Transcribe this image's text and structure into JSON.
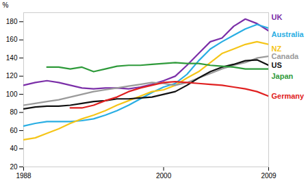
{
  "chart_data": {
    "type": "line",
    "y_label": "%",
    "x": [
      1988,
      1989,
      1990,
      1991,
      1992,
      1993,
      1994,
      1995,
      1996,
      1997,
      1998,
      1999,
      2000,
      2001,
      2002,
      2003,
      2004,
      2005,
      2006,
      2007,
      2008,
      2009
    ],
    "series": [
      {
        "name": "UK",
        "color": "#7b2fa8",
        "values": [
          110,
          113,
          115,
          113,
          110,
          107,
          106,
          107,
          107,
          106,
          108,
          111,
          115,
          120,
          132,
          145,
          158,
          162,
          175,
          183,
          178,
          170
        ]
      },
      {
        "name": "Australia",
        "color": "#29aee3",
        "values": [
          65,
          68,
          70,
          70,
          70,
          71,
          73,
          77,
          82,
          88,
          95,
          102,
          108,
          112,
          122,
          137,
          150,
          158,
          165,
          172,
          177,
          173
        ]
      },
      {
        "name": "NZ",
        "color": "#f5c518",
        "values": [
          50,
          52,
          57,
          62,
          68,
          73,
          77,
          82,
          88,
          93,
          98,
          103,
          105,
          110,
          118,
          125,
          135,
          145,
          150,
          155,
          158,
          155
        ]
      },
      {
        "name": "Canada",
        "color": "#9a9a9a",
        "values": [
          88,
          90,
          92,
          94,
          97,
          100,
          103,
          105,
          107,
          109,
          111,
          113,
          112,
          110,
          113,
          118,
          123,
          128,
          132,
          135,
          140,
          142
        ]
      },
      {
        "name": "US",
        "color": "#111111",
        "values": [
          84,
          86,
          87,
          87,
          88,
          90,
          92,
          93,
          95,
          95,
          96,
          97,
          100,
          103,
          110,
          118,
          125,
          130,
          133,
          137,
          138,
          132
        ]
      },
      {
        "name": "Japan",
        "color": "#2e9a3a",
        "values": [
          null,
          null,
          130,
          130,
          128,
          130,
          125,
          128,
          131,
          132,
          132,
          133,
          134,
          135,
          134,
          134,
          132,
          131,
          130,
          128,
          128,
          128
        ]
      },
      {
        "name": "Germany",
        "color": "#e02020",
        "values": [
          null,
          null,
          null,
          null,
          85,
          85,
          88,
          93,
          97,
          103,
          107,
          110,
          113,
          114,
          113,
          112,
          111,
          110,
          108,
          106,
          103,
          98
        ]
      }
    ],
    "xlim": [
      1988,
      2009
    ],
    "xticks": [
      1988,
      2000,
      2009
    ],
    "ylim": [
      20,
      190
    ],
    "yticks": [
      20,
      40,
      60,
      80,
      100,
      120,
      140,
      160,
      180
    ],
    "grid": false
  }
}
